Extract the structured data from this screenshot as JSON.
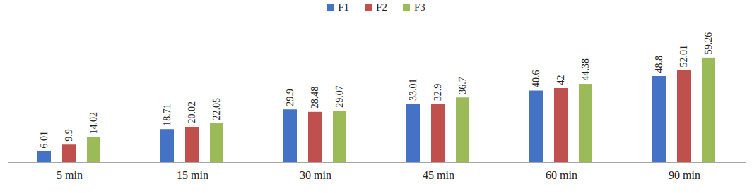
{
  "chart_data": {
    "type": "bar",
    "categories": [
      "5 min",
      "15 min",
      "30 min",
      "45 min",
      "60 min",
      "90 min"
    ],
    "series": [
      {
        "name": "F1",
        "color": "#4472c4",
        "values": [
          6.01,
          18.71,
          29.9,
          33.01,
          40.6,
          48.8
        ]
      },
      {
        "name": "F2",
        "color": "#c0504d",
        "values": [
          9.9,
          20.02,
          28.48,
          32.9,
          42,
          52.01
        ]
      },
      {
        "name": "F3",
        "color": "#9bbb59",
        "values": [
          14.02,
          22.05,
          29.07,
          36.7,
          44.38,
          59.26
        ]
      }
    ],
    "ylim": [
      0,
      80
    ],
    "grid": false,
    "legend": "top",
    "data_labels": true,
    "tick_labels": "x"
  }
}
